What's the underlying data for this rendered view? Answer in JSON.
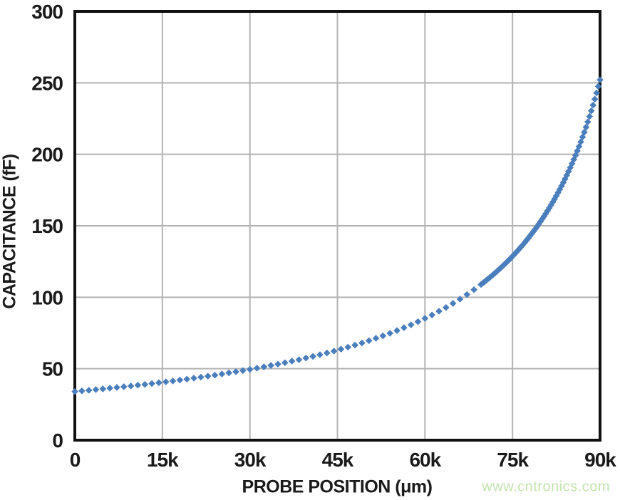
{
  "page": {
    "background": "#ffffff"
  },
  "watermark": {
    "text": "www.cntronics.com",
    "color": "#c3e3ae"
  },
  "chart_data": {
    "type": "scatter",
    "title": "",
    "xlabel": "PROBE POSITION (μm)",
    "ylabel": "CAPACITANCE (fF)",
    "xlim": [
      0,
      90000
    ],
    "ylim": [
      0,
      300
    ],
    "grid": true,
    "legend": "none",
    "axes_color": "#111111",
    "grid_color": "#b3b3b3",
    "text_color": "#1a1a1a",
    "x_ticks": {
      "values": [
        0,
        15000,
        30000,
        45000,
        60000,
        75000,
        90000
      ],
      "labels": [
        "0",
        "15k",
        "30k",
        "45k",
        "60k",
        "75k",
        "90k"
      ]
    },
    "y_ticks": {
      "values": [
        0,
        50,
        100,
        150,
        200,
        250,
        300
      ],
      "labels": [
        "0",
        "50",
        "100",
        "150",
        "200",
        "250",
        "300"
      ]
    },
    "series": [
      {
        "name": "capacitance-vs-probe-position",
        "marker": "diamond",
        "color": "#4a7ebd",
        "points": [
          [
            0,
            34.0
          ],
          [
            1200,
            34.5
          ],
          [
            2400,
            34.9
          ],
          [
            3600,
            35.4
          ],
          [
            4800,
            35.9
          ],
          [
            6000,
            36.4
          ],
          [
            7200,
            36.9
          ],
          [
            8400,
            37.4
          ],
          [
            9600,
            37.9
          ],
          [
            10800,
            38.5
          ],
          [
            12000,
            39.0
          ],
          [
            13200,
            39.6
          ],
          [
            14400,
            40.2
          ],
          [
            15600,
            40.8
          ],
          [
            16800,
            41.4
          ],
          [
            18000,
            42.1
          ],
          [
            19200,
            42.7
          ],
          [
            20400,
            43.4
          ],
          [
            21600,
            44.1
          ],
          [
            22800,
            44.8
          ],
          [
            24000,
            45.5
          ],
          [
            25200,
            46.3
          ],
          [
            26400,
            47.1
          ],
          [
            27600,
            47.9
          ],
          [
            28800,
            48.7
          ],
          [
            30000,
            49.5
          ],
          [
            31200,
            50.4
          ],
          [
            32400,
            51.3
          ],
          [
            33600,
            52.3
          ],
          [
            34800,
            53.2
          ],
          [
            36000,
            54.2
          ],
          [
            37200,
            55.3
          ],
          [
            38400,
            56.3
          ],
          [
            39600,
            57.5
          ],
          [
            40800,
            58.6
          ],
          [
            42000,
            59.8
          ],
          [
            43200,
            61.0
          ],
          [
            44400,
            62.3
          ],
          [
            45600,
            63.7
          ],
          [
            46800,
            65.1
          ],
          [
            48000,
            66.5
          ],
          [
            49200,
            68.0
          ],
          [
            50400,
            69.6
          ],
          [
            51600,
            71.3
          ],
          [
            52800,
            73.0
          ],
          [
            54000,
            74.8
          ],
          [
            55200,
            76.7
          ],
          [
            56400,
            78.7
          ],
          [
            57600,
            80.7
          ],
          [
            58800,
            82.9
          ],
          [
            60000,
            85.2
          ],
          [
            61200,
            87.6
          ],
          [
            62400,
            90.2
          ],
          [
            63600,
            92.8
          ],
          [
            64800,
            95.7
          ],
          [
            66000,
            98.7
          ],
          [
            67200,
            101.9
          ],
          [
            68400,
            105.3
          ],
          [
            69600,
            108.9
          ],
          [
            69900,
            109.9
          ],
          [
            70200,
            110.8
          ],
          [
            70500,
            111.8
          ],
          [
            70800,
            112.8
          ],
          [
            71100,
            113.8
          ],
          [
            71400,
            114.8
          ],
          [
            71700,
            115.9
          ],
          [
            72000,
            116.9
          ],
          [
            72300,
            118.0
          ],
          [
            72600,
            119.1
          ],
          [
            72900,
            120.2
          ],
          [
            73200,
            121.4
          ],
          [
            73500,
            122.5
          ],
          [
            73800,
            123.7
          ],
          [
            74100,
            124.9
          ],
          [
            74400,
            126.1
          ],
          [
            74700,
            127.4
          ],
          [
            75000,
            128.7
          ],
          [
            75300,
            129.9
          ],
          [
            75600,
            131.3
          ],
          [
            75900,
            132.6
          ],
          [
            76200,
            134.0
          ],
          [
            76500,
            135.4
          ],
          [
            76800,
            136.8
          ],
          [
            77100,
            138.3
          ],
          [
            77400,
            139.8
          ],
          [
            77700,
            141.3
          ],
          [
            78000,
            142.9
          ],
          [
            78300,
            144.5
          ],
          [
            78600,
            146.1
          ],
          [
            78900,
            147.7
          ],
          [
            79200,
            149.4
          ],
          [
            79500,
            151.2
          ],
          [
            79800,
            153.0
          ],
          [
            80100,
            154.8
          ],
          [
            80400,
            156.6
          ],
          [
            80700,
            158.5
          ],
          [
            81000,
            160.5
          ],
          [
            81300,
            162.5
          ],
          [
            81600,
            164.5
          ],
          [
            81900,
            166.6
          ],
          [
            82200,
            168.7
          ],
          [
            82500,
            170.9
          ],
          [
            82800,
            173.2
          ],
          [
            83100,
            175.5
          ],
          [
            83400,
            177.9
          ],
          [
            83700,
            180.3
          ],
          [
            84000,
            182.8
          ],
          [
            84300,
            185.4
          ],
          [
            84600,
            188.0
          ],
          [
            84900,
            190.7
          ],
          [
            85200,
            193.5
          ],
          [
            85500,
            196.4
          ],
          [
            85800,
            199.3
          ],
          [
            86100,
            202.4
          ],
          [
            86400,
            205.5
          ],
          [
            86700,
            208.7
          ],
          [
            87000,
            212.1
          ],
          [
            87300,
            215.5
          ],
          [
            87600,
            219.0
          ],
          [
            87900,
            222.7
          ],
          [
            88200,
            226.5
          ],
          [
            88500,
            230.4
          ],
          [
            88800,
            234.4
          ],
          [
            89100,
            238.6
          ],
          [
            89400,
            243.0
          ],
          [
            89700,
            247.5
          ],
          [
            90000,
            252.1
          ]
        ]
      }
    ]
  }
}
